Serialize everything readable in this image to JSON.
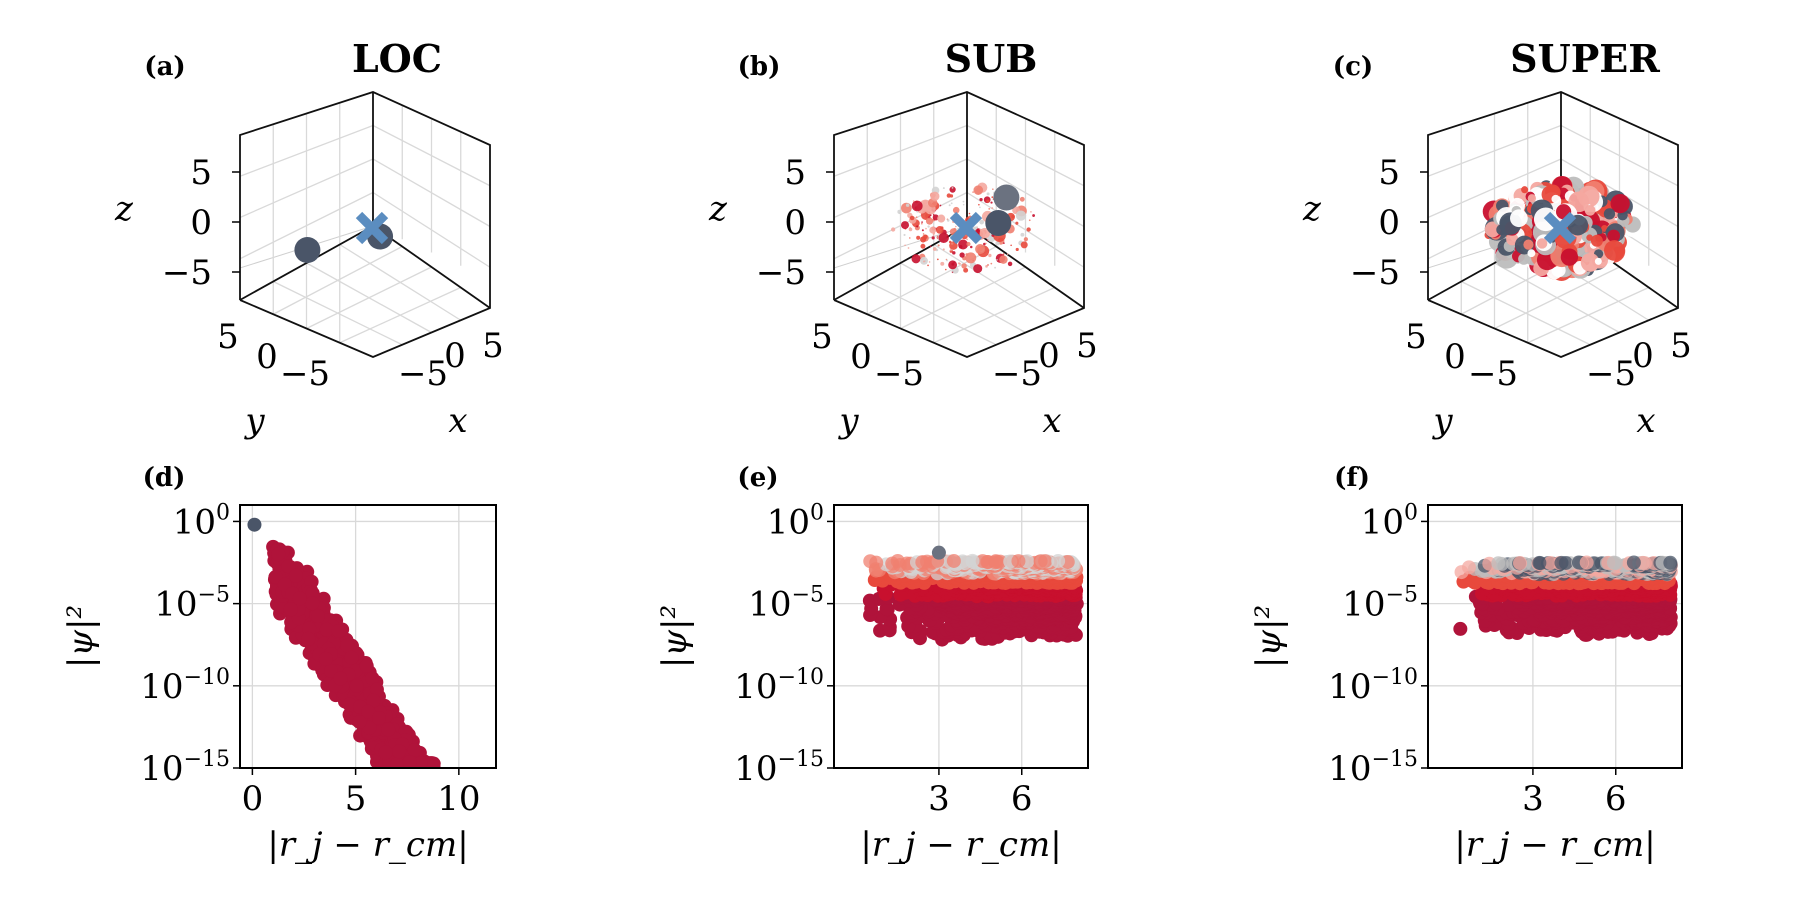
{
  "chart_data": [
    {
      "panel": "(a)",
      "title": "LOC",
      "type": "scatter",
      "projection": "3d",
      "xlabel": "x",
      "ylabel": "y",
      "zlabel": "z",
      "xticks": [
        "−5",
        "0",
        "5"
      ],
      "yticks": [
        "5",
        "0",
        "−5"
      ],
      "zticks": [
        "5",
        "0",
        "−5"
      ],
      "xlim": [
        -8,
        8
      ],
      "ylim": [
        -8,
        8
      ],
      "zlim": [
        -8,
        8
      ],
      "center_marker": {
        "x": 0,
        "y": 0,
        "z": 0,
        "symbol": "x",
        "color": "#5b8dc0"
      },
      "points": [
        {
          "x": 1,
          "y": 0,
          "z": -1,
          "size": "large",
          "color": "#4a5568"
        },
        {
          "x": -4,
          "y": 4,
          "z": -4,
          "size": "large",
          "color": "#4a5568"
        }
      ]
    },
    {
      "panel": "(b)",
      "title": "SUB",
      "type": "scatter",
      "projection": "3d",
      "xlabel": "x",
      "ylabel": "y",
      "zlabel": "z",
      "xticks": [
        "−5",
        "0",
        "5"
      ],
      "yticks": [
        "5",
        "0",
        "−5"
      ],
      "zticks": [
        "5",
        "0",
        "−5"
      ],
      "xlim": [
        -8,
        8
      ],
      "ylim": [
        -8,
        8
      ],
      "zlim": [
        -8,
        8
      ],
      "center_marker": {
        "x": 0,
        "y": 0,
        "z": 0,
        "symbol": "x",
        "color": "#5b8dc0"
      },
      "cloud_radius": 6.5,
      "cloud_density": "sparse",
      "cloud_colors": [
        "#e8493c",
        "#f08070",
        "#c8102e",
        "#f4a8a0",
        "#d3d3d3"
      ],
      "highlight_points": [
        {
          "x": 2,
          "y": -3,
          "z": 5,
          "color": "#6b7280"
        },
        {
          "x": 3,
          "y": -1,
          "z": 2,
          "color": "#4a5568"
        }
      ]
    },
    {
      "panel": "(c)",
      "title": "SUPER",
      "type": "scatter",
      "projection": "3d",
      "xlabel": "x",
      "ylabel": "y",
      "zlabel": "z",
      "xticks": [
        "−5",
        "0",
        "5"
      ],
      "yticks": [
        "5",
        "0",
        "−5"
      ],
      "zticks": [
        "5",
        "0",
        "−5"
      ],
      "xlim": [
        -8,
        8
      ],
      "ylim": [
        -8,
        8
      ],
      "zlim": [
        -8,
        8
      ],
      "center_marker": {
        "x": 0,
        "y": 0,
        "z": 0,
        "symbol": "x",
        "color": "#5b8dc0"
      },
      "cloud_radius": 6.5,
      "cloud_density": "dense",
      "cloud_colors": [
        "#bdbdbd",
        "#e8493c",
        "#f4a8a0",
        "#4a5568",
        "#f08070",
        "#ffffff",
        "#c8102e"
      ]
    },
    {
      "panel": "(d)",
      "type": "scatter",
      "xlabel": "|r_j − r_cm|",
      "ylabel": "|ψ|²",
      "yscale": "log",
      "xlim": [
        -0.6,
        11.8
      ],
      "ylim": [
        -15,
        1
      ],
      "xticks": [
        {
          "v": 0,
          "label": "0"
        },
        {
          "v": 5,
          "label": "5"
        },
        {
          "v": 10,
          "label": "10"
        }
      ],
      "yticks": [
        {
          "v": 0,
          "label": "10^0"
        },
        {
          "v": -5,
          "label": "10^−5"
        },
        {
          "v": -10,
          "label": "10^−10"
        },
        {
          "v": -15,
          "label": "10^−15"
        }
      ],
      "outlier": {
        "x": 0.1,
        "log10_y": -0.2,
        "color": "#4a5568"
      },
      "trend": {
        "x_start": 1.0,
        "log10_y_start": -1.8,
        "slope_per_unit": -1.95,
        "spread": 2.5,
        "x_end": 8.8,
        "floor": -15
      },
      "color": "#b0133a"
    },
    {
      "panel": "(e)",
      "type": "scatter",
      "xlabel": "|r_j − r_cm|",
      "ylabel": "|ψ|²",
      "yscale": "log",
      "xlim": [
        -0.8,
        8.4
      ],
      "ylim": [
        -15,
        1
      ],
      "xticks": [
        {
          "v": 3,
          "label": "3"
        },
        {
          "v": 6,
          "label": "6"
        }
      ],
      "yticks": [
        {
          "v": 0,
          "label": "10^0"
        },
        {
          "v": -5,
          "label": "10^−5"
        },
        {
          "v": -10,
          "label": "10^−10"
        },
        {
          "v": -15,
          "label": "10^−15"
        }
      ],
      "band": {
        "x_min": 0.3,
        "x_max": 8.0,
        "log10_y_min": -7.2,
        "log10_y_max": -2.4
      },
      "colors": [
        "#b0133a",
        "#c8102e",
        "#e8493c",
        "#f08070",
        "#d3d3d3"
      ],
      "outliers": [
        {
          "x": 3.0,
          "log10_y": -1.9,
          "color": "#6b7280"
        }
      ]
    },
    {
      "panel": "(f)",
      "type": "scatter",
      "xlabel": "|r_j − r_cm|",
      "ylabel": "|ψ|²",
      "yscale": "log",
      "xlim": [
        -0.8,
        8.4
      ],
      "ylim": [
        -15,
        1
      ],
      "xticks": [
        {
          "v": 3,
          "label": "3"
        },
        {
          "v": 6,
          "label": "6"
        }
      ],
      "yticks": [
        {
          "v": 0,
          "label": "10^0"
        },
        {
          "v": -5,
          "label": "10^−5"
        },
        {
          "v": -10,
          "label": "10^−10"
        },
        {
          "v": -15,
          "label": "10^−15"
        }
      ],
      "band": {
        "x_min": 0.3,
        "x_max": 8.0,
        "log10_y_min": -7.0,
        "log10_y_max": -2.5
      },
      "colors": [
        "#b0133a",
        "#c8102e",
        "#e8493c",
        "#f4a8a0",
        "#bdbdbd",
        "#4a5568"
      ]
    }
  ]
}
